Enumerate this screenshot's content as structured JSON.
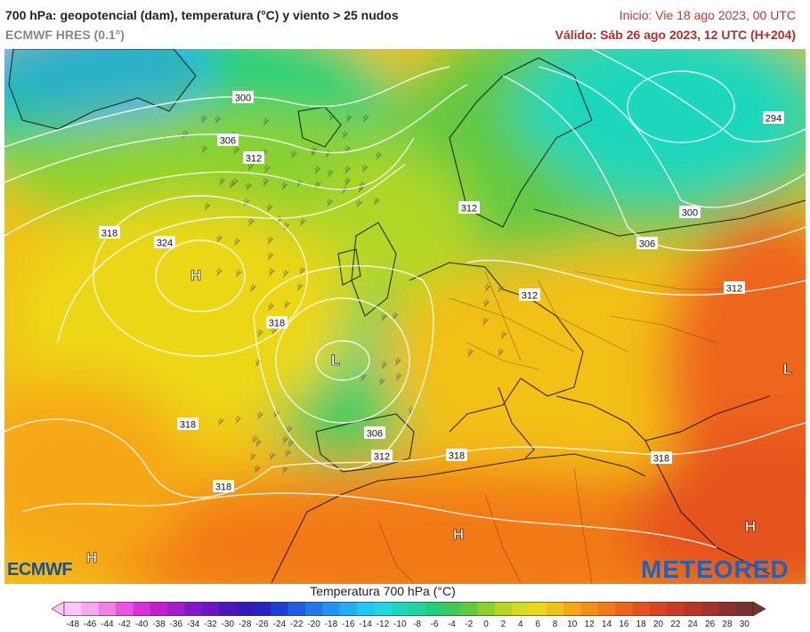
{
  "header": {
    "title": "700 hPa: geopotencial (dam), temperatura (°C) y viento > 25 nudos",
    "subtitle": "ECMWF HRES (0.1°)",
    "init": "Inicio: Vie 18 ago 2023, 00 UTC",
    "valid": "Válido: Sáb 26 ago 2023, 12 UTC (H+204)"
  },
  "map": {
    "contour_labels": [
      "300",
      "306",
      "312",
      "294",
      "300",
      "312",
      "306",
      "318",
      "324",
      "318",
      "312",
      "312",
      "306",
      "312",
      "318",
      "318",
      "318",
      "318"
    ],
    "pressure_centers": [
      "H",
      "L",
      "H",
      "L",
      "H",
      "H"
    ]
  },
  "logos": {
    "left": "ECMWF",
    "right": "METEORED"
  },
  "legend": {
    "title": "Temperatura 700 hPa (°C)",
    "values": [
      "-48",
      "-46",
      "-44",
      "-42",
      "-40",
      "-38",
      "-36",
      "-34",
      "-32",
      "-30",
      "-28",
      "-26",
      "-24",
      "-22",
      "-20",
      "-18",
      "-16",
      "-14",
      "-12",
      "-10",
      "-8",
      "-6",
      "-4",
      "-2",
      "0",
      "2",
      "4",
      "6",
      "8",
      "10",
      "12",
      "14",
      "16",
      "18",
      "20",
      "22",
      "24",
      "26",
      "28",
      "30"
    ],
    "colors": [
      "#f7c8f3",
      "#f4a8ee",
      "#f07ee8",
      "#e955e0",
      "#dc30d6",
      "#c31fd0",
      "#a51ccd",
      "#8617c9",
      "#6a16c3",
      "#4d16bd",
      "#3418b8",
      "#2324c3",
      "#1e3fd4",
      "#1f5de0",
      "#2078ea",
      "#2392f2",
      "#22aef5",
      "#1ec8f0",
      "#1dd8dc",
      "#1dd7bb",
      "#1dd59a",
      "#22d078",
      "#3ec95a",
      "#62c93f",
      "#8ad12f",
      "#b2d725",
      "#d5dd1c",
      "#ecd718",
      "#f3c014",
      "#f6a714",
      "#f59015",
      "#f27a18",
      "#ee651b",
      "#e6521e",
      "#dc4320",
      "#cc3a23",
      "#b93526",
      "#a4342a",
      "#8c322d",
      "#763230"
    ]
  }
}
